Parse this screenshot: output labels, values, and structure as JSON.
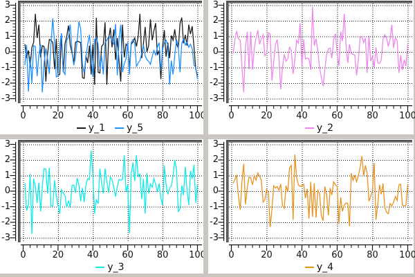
{
  "window": {
    "background": "#ffffff",
    "separator_color": "#c9c6bf",
    "bevel_dark": "#4f4f4f",
    "bevel_light": "#8d8d8d",
    "grid_color": "#000000",
    "axis_color": "#111111"
  },
  "axis": {
    "y_major": [
      3,
      2,
      1,
      0,
      -1,
      -2,
      -3
    ],
    "y_minor_step": 0.2,
    "x_major": [
      0,
      20,
      40,
      60,
      80,
      100
    ],
    "x_minor_step": 4,
    "ylim": [
      -3,
      3
    ],
    "xlim": [
      0,
      100
    ],
    "grid_style": "dotted"
  },
  "chart_data": [
    {
      "id": "top-left",
      "type": "line",
      "title": "",
      "xlabel": "",
      "ylabel": "",
      "xlim": [
        0,
        100
      ],
      "ylim": [
        -3,
        3
      ],
      "grid": true,
      "legend_position": "below",
      "x_start": 1,
      "x_step": 1,
      "series": [
        {
          "name": "y_1",
          "color": "#1a1a1a",
          "values": [
            0.5,
            -0.4,
            0.1,
            -1.0,
            0.3,
            0.6,
            2.45,
            0.9,
            1.75,
            -0.35,
            0.4,
            0.35,
            -1.9,
            -0.1,
            0.8,
            0.75,
            0.6,
            -1.1,
            0.85,
            -1.5,
            -1.45,
            1.05,
            -1.3,
            0.55,
            1.0,
            1.7,
            0.45,
            -0.05,
            -0.7,
            0.6,
            0.7,
            0.65,
            0.6,
            -1.65,
            -1.7,
            -0.25,
            -0.7,
            0.4,
            -1.45,
            0.5,
            -2.1,
            2.2,
            -1.3,
            -1.35,
            0.35,
            0.5,
            1.9,
            -2.1,
            0.8,
            1.55,
            0.3,
            1.45,
            -0.5,
            0.9,
            -0.6,
            -1.9,
            1.75,
            -0.35,
            0.5,
            0.35,
            -1.0,
            0.5,
            0.65,
            0.9,
            0.35,
            1.0,
            2.45,
            -0.4,
            0.55,
            1.6,
            0.0,
            0.4,
            2.1,
            0.75,
            1.35,
            1.85,
            -0.2,
            0.1,
            -1.75,
            0.35,
            1.4,
            -0.3,
            0.6,
            -0.4,
            1.05,
            0.75,
            1.45,
            0.5,
            0.25,
            1.85,
            2.2,
            0.55,
            1.1,
            0.4,
            1.75,
            1.15,
            1.65,
            0.3,
            -1.1,
            -1.5
          ]
        },
        {
          "name": "y_5",
          "color": "#1e90ff",
          "values": [
            -0.85,
            0.45,
            -2.55,
            -0.3,
            -2.0,
            0.4,
            0.35,
            -1.55,
            -0.2,
            0.5,
            -2.6,
            -0.75,
            0.25,
            -0.45,
            -1.4,
            0.6,
            2.15,
            0.55,
            -1.6,
            -1.55,
            0.4,
            1.2,
            -1.25,
            -1.45,
            0.75,
            0.95,
            1.75,
            0.1,
            -0.85,
            -0.35,
            0.75,
            1.95,
            1.45,
            -0.8,
            -1.35,
            -0.3,
            0.45,
            1.1,
            -0.2,
            -1.6,
            0.8,
            0.9,
            0.5,
            -1.1,
            -0.25,
            -1.45,
            0.6,
            0.75,
            1.0,
            0.95,
            0.7,
            0.5,
            1.8,
            -1.5,
            0.8,
            1.75,
            -1.3,
            -0.75,
            -0.45,
            0.65,
            -1.45,
            0.6,
            0.8,
            0.55,
            -0.95,
            -0.7,
            -0.55,
            -0.1,
            0.45,
            -0.25,
            -0.5,
            -0.6,
            -0.8,
            -0.3,
            0.1,
            -0.2,
            0.3,
            0.6,
            -1.2,
            0.15,
            0.6,
            0.75,
            0.45,
            -2.1,
            -0.55,
            -1.45,
            -0.2,
            0.8,
            0.35,
            -1.3,
            0.55,
            0.85,
            0.45,
            0.65,
            0.3,
            0.5,
            0.2,
            -0.85,
            -1.0,
            -1.75
          ]
        }
      ]
    },
    {
      "id": "top-right",
      "type": "line",
      "title": "",
      "xlabel": "",
      "ylabel": "",
      "xlim": [
        0,
        100
      ],
      "ylim": [
        -3,
        3
      ],
      "grid": true,
      "legend_position": "below",
      "x_start": 1,
      "x_step": 1,
      "series": [
        {
          "name": "y_2",
          "color": "#ee86ee",
          "values": [
            -0.1,
            0.75,
            1.35,
            0.85,
            0.75,
            -0.9,
            -2.6,
            0.3,
            1.3,
            -1.1,
            1.3,
            -1.15,
            0.25,
            0.9,
            1.4,
            0.5,
            0.85,
            1.1,
            -0.25,
            -0.1,
            1.25,
            1.15,
            -1.85,
            -0.7,
            0.5,
            0.8,
            -0.35,
            -2.4,
            -1.0,
            -0.15,
            -0.6,
            -0.45,
            0.3,
            0.1,
            -1.4,
            -0.5,
            0.75,
            0.55,
            1.85,
            -0.9,
            0.8,
            -0.45,
            -0.4,
            -0.45,
            -1.15,
            2.9,
            0.4,
            0.85,
            0.1,
            -1.0,
            -1.6,
            -2.2,
            -1.15,
            -0.15,
            0.2,
            0.25,
            -0.4,
            0.8,
            1.15,
            -0.1,
            -0.9,
            1.3,
            0.7,
            2.45,
            0.4,
            -0.7,
            0.5,
            -0.1,
            -0.15,
            -0.2,
            -1.5,
            -0.5,
            0.9,
            1.0,
            0.6,
            0.9,
            -1.35,
            1.05,
            -0.6,
            -0.25,
            -1.0,
            0.3,
            -0.7,
            -0.75,
            -0.5,
            0.8,
            1.1,
            0.9,
            0.35,
            0.8,
            1.75,
            0.25,
            0.9,
            0.75,
            -1.35,
            -0.2,
            -1.15,
            -0.5,
            -0.9,
            0.5
          ]
        }
      ]
    },
    {
      "id": "bottom-left",
      "type": "line",
      "title": "",
      "xlabel": "",
      "ylabel": "",
      "xlim": [
        0,
        100
      ],
      "ylim": [
        -3,
        3
      ],
      "grid": true,
      "legend_position": "below",
      "x_start": 1,
      "x_step": 1,
      "series": [
        {
          "name": "y_3",
          "color": "#0fe9e9",
          "values": [
            0.5,
            -1.25,
            -0.9,
            1.1,
            -2.75,
            0.8,
            0.3,
            -0.75,
            0.55,
            -1.3,
            0.35,
            1.45,
            1.4,
            -0.15,
            1.5,
            -0.95,
            -0.95,
            0.7,
            -0.3,
            -0.95,
            -1.45,
            0.1,
            -0.1,
            -0.3,
            -1.05,
            -0.6,
            -1.05,
            0.35,
            0.4,
            -0.1,
            0.85,
            0.4,
            -0.65,
            0.2,
            -0.7,
            0.4,
            0.8,
            0.75,
            2.6,
            1.0,
            -1.45,
            -0.55,
            -0.8,
            1.45,
            0.5,
            -0.15,
            1.45,
            0.6,
            -0.1,
            0.9,
            0.75,
            0.25,
            -0.35,
            0.3,
            0.75,
            0.7,
            0.75,
            2.3,
            -0.05,
            0.4,
            -2.7,
            1.1,
            1.85,
            0.65,
            2.3,
            0.95,
            1.1,
            -0.5,
            0.8,
            -1.45,
            1.15,
            -0.15,
            0.45,
            0.25,
            0.8,
            0.45,
            -0.05,
            0.5,
            -0.45,
            -0.9,
            1.65,
            0.45,
            -0.2,
            0.2,
            0.35,
            0.95,
            2.0,
            1.35,
            -1.3,
            -1.15,
            0.35,
            -0.25,
            1.55,
            0.1,
            -0.9,
            1.3,
            0.8,
            1.7,
            -0.75,
            0.4
          ]
        }
      ]
    },
    {
      "id": "bottom-right",
      "type": "line",
      "title": "",
      "xlabel": "",
      "ylabel": "",
      "xlim": [
        0,
        100
      ],
      "ylim": [
        -3,
        3
      ],
      "grid": true,
      "legend_position": "below",
      "x_start": 1,
      "x_step": 1,
      "series": [
        {
          "name": "y_4",
          "color": "#e8921e",
          "values": [
            0.5,
            0.75,
            1.0,
            -0.3,
            -1.2,
            0.6,
            1.75,
            -0.85,
            0.2,
            0.9,
            0.85,
            0.4,
            1.0,
            0.7,
            1.15,
            0.95,
            0.7,
            -0.7,
            -0.55,
            0.1,
            -0.05,
            -2.3,
            -1.15,
            0.35,
            0.2,
            0.3,
            0.05,
            0.45,
            -0.95,
            -1.1,
            0.35,
            -0.05,
            1.5,
            1.65,
            -1.85,
            2.35,
            0.9,
            0.4,
            0.3,
            0.35,
            0.45,
            -0.45,
            0.15,
            -1.75,
            0.6,
            -1.65,
            0.5,
            -1.7,
            0.05,
            -0.15,
            -1.55,
            -1.9,
            0.3,
            -0.25,
            -1.55,
            0.2,
            -0.25,
            0.6,
            0.4,
            0.3,
            -2.1,
            -0.4,
            -1.3,
            -0.9,
            -0.75,
            -0.8,
            -2.25,
            1.15,
            0.7,
            1.0,
            0.6,
            1.0,
            1.5,
            2.25,
            1.0,
            1.65,
            1.15,
            -0.65,
            -0.35,
            0.05,
            1.8,
            -1.85,
            -0.9,
            0.4,
            -0.2,
            0.5,
            -1.05,
            -1.35,
            -1.45,
            -0.8,
            -0.95,
            -0.7,
            -0.35,
            -0.6,
            0.4,
            0.45,
            -0.9,
            -0.95,
            -0.9,
            0.45
          ]
        }
      ]
    }
  ]
}
